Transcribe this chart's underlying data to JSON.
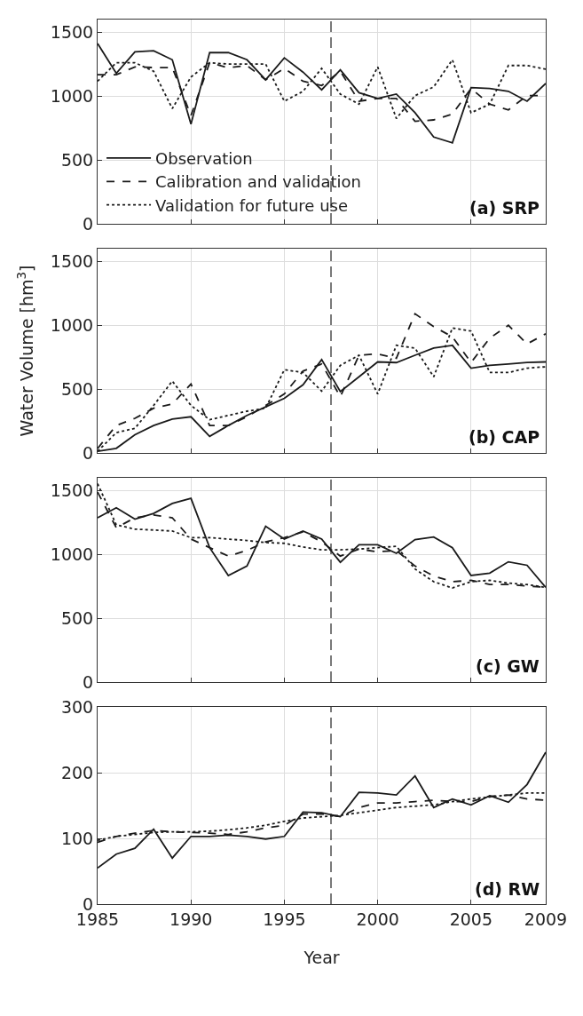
{
  "chart_data": [
    {
      "type": "line",
      "annotations": [
        "(a) SRP"
      ],
      "x": [
        1985,
        1986,
        1987,
        1988,
        1989,
        1990,
        1991,
        1992,
        1993,
        1994,
        1995,
        1996,
        1997,
        1998,
        1999,
        2000,
        2001,
        2002,
        2003,
        2004,
        2005,
        2006,
        2007,
        2008,
        2009
      ],
      "xlim": [
        1985,
        2009
      ],
      "xticks": [
        1985,
        1990,
        1995,
        2000,
        2005,
        2009
      ],
      "ylim": [
        0,
        1600
      ],
      "yticks": [
        0,
        500,
        1000,
        1500
      ],
      "grid": true,
      "legend": "bottom left",
      "tick_labels": "y",
      "ref_lines": [
        {
          "axis": "x",
          "value": 1997.5,
          "color": "#222222",
          "line_style": "dashed"
        }
      ],
      "series": [
        {
          "name": "Observation",
          "color": "#1a1a1a",
          "line_style": "solid",
          "values": [
            1412,
            1179,
            1347,
            1356,
            1285,
            780,
            1341,
            1341,
            1285,
            1128,
            1300,
            1188,
            1049,
            1206,
            1027,
            982,
            1016,
            870,
            680,
            634,
            1067,
            1060,
            1038,
            960,
            1099
          ]
        },
        {
          "name": "Calibration and validation",
          "color": "#1a1a1a",
          "line_style": "dashed",
          "values": [
            1168,
            1168,
            1229,
            1224,
            1224,
            848,
            1262,
            1222,
            1240,
            1128,
            1217,
            1117,
            1083,
            1195,
            960,
            982,
            982,
            803,
            814,
            859,
            1060,
            937,
            892,
            1004,
            1004
          ]
        },
        {
          "name": "Validation for future use",
          "color": "#1a1a1a",
          "line_style": "dotted",
          "values": [
            1117,
            1262,
            1262,
            1195,
            903,
            1150,
            1262,
            1251,
            1251,
            1251,
            960,
            1038,
            1217,
            1016,
            937,
            1229,
            825,
            1004,
            1072,
            1285,
            870,
            937,
            1240,
            1240,
            1211
          ]
        }
      ]
    },
    {
      "type": "line",
      "annotations": [
        "(b) CAP"
      ],
      "ylabel": "Water Volume [hm$^{3}$]",
      "x": [
        1985,
        1986,
        1987,
        1988,
        1989,
        1990,
        1991,
        1992,
        1993,
        1994,
        1995,
        1996,
        1997,
        1998,
        1999,
        2000,
        2001,
        2002,
        2003,
        2004,
        2005,
        2006,
        2007,
        2008,
        2009
      ],
      "xlim": [
        1985,
        2009
      ],
      "xticks": [
        1985,
        1990,
        1995,
        2000,
        2005,
        2009
      ],
      "ylim": [
        0,
        1600
      ],
      "yticks": [
        0,
        500,
        1000,
        1500
      ],
      "grid": true,
      "tick_labels": "y",
      "ref_lines": [
        {
          "axis": "x",
          "value": 1997.5,
          "color": "#222222",
          "line_style": "dashed"
        }
      ],
      "series": [
        {
          "color": "#1a1a1a",
          "line_style": "solid",
          "values": [
            13,
            36,
            143,
            215,
            265,
            283,
            130,
            215,
            294,
            361,
            428,
            534,
            731,
            480,
            596,
            713,
            708,
            765,
            821,
            843,
            664,
            686,
            697,
            708,
            713
          ]
        },
        {
          "color": "#1a1a1a",
          "line_style": "dashed",
          "values": [
            36,
            215,
            271,
            350,
            383,
            540,
            215,
            215,
            283,
            372,
            462,
            641,
            697,
            440,
            765,
            776,
            742,
            1090,
            989,
            910,
            708,
            899,
            1000,
            854,
            933
          ]
        },
        {
          "color": "#1a1a1a",
          "line_style": "dotted",
          "values": [
            13,
            159,
            193,
            372,
            563,
            372,
            260,
            294,
            327,
            350,
            652,
            630,
            484,
            686,
            765,
            462,
            843,
            821,
            596,
            978,
            955,
            630,
            630,
            664,
            675
          ]
        }
      ]
    },
    {
      "type": "line",
      "annotations": [
        "(c) GW"
      ],
      "x": [
        1985,
        1986,
        1987,
        1988,
        1989,
        1990,
        1991,
        1992,
        1993,
        1994,
        1995,
        1996,
        1997,
        1998,
        1999,
        2000,
        2001,
        2002,
        2003,
        2004,
        2005,
        2006,
        2007,
        2008,
        2009
      ],
      "xlim": [
        1985,
        2009
      ],
      "xticks": [
        1985,
        1990,
        1995,
        2000,
        2005,
        2009
      ],
      "ylim": [
        0,
        1600
      ],
      "yticks": [
        0,
        500,
        1000,
        1500
      ],
      "grid": true,
      "tick_labels": "y",
      "ref_lines": [
        {
          "axis": "x",
          "value": 1997.5,
          "color": "#222222",
          "line_style": "dashed"
        }
      ],
      "series": [
        {
          "color": "#1a1a1a",
          "line_style": "solid",
          "values": [
            1287,
            1365,
            1276,
            1321,
            1399,
            1439,
            1053,
            835,
            909,
            1220,
            1120,
            1183,
            1120,
            938,
            1076,
            1076,
            1009,
            1116,
            1136,
            1053,
            835,
            853,
            942,
            915,
            742
          ]
        },
        {
          "color": "#1a1a1a",
          "line_style": "dashed",
          "values": [
            1488,
            1209,
            1287,
            1309,
            1287,
            1120,
            1053,
            987,
            1031,
            1098,
            1131,
            1176,
            1098,
            987,
            1042,
            1020,
            1031,
            909,
            831,
            786,
            797,
            764,
            764,
            753,
            742
          ]
        },
        {
          "color": "#1a1a1a",
          "line_style": "dotted",
          "values": [
            1554,
            1232,
            1198,
            1191,
            1183,
            1131,
            1131,
            1120,
            1109,
            1093,
            1087,
            1058,
            1036,
            1036,
            1042,
            1053,
            1064,
            886,
            786,
            737,
            786,
            797,
            775,
            764,
            742
          ]
        }
      ]
    },
    {
      "type": "line",
      "annotations": [
        "(d) RW"
      ],
      "xlabel": "Year",
      "x": [
        1985,
        1986,
        1987,
        1988,
        1989,
        1990,
        1991,
        1992,
        1993,
        1994,
        1995,
        1996,
        1997,
        1998,
        1999,
        2000,
        2001,
        2002,
        2003,
        2004,
        2005,
        2006,
        2007,
        2008,
        2009
      ],
      "xlim": [
        1985,
        2009
      ],
      "xticks": [
        1985,
        1990,
        1995,
        2000,
        2005,
        2009
      ],
      "ylim": [
        0,
        300
      ],
      "yticks": [
        0,
        100,
        200,
        300
      ],
      "grid": true,
      "ref_lines": [
        {
          "axis": "x",
          "value": 1997.5,
          "color": "#222222",
          "line_style": "dashed"
        }
      ],
      "series": [
        {
          "color": "#1a1a1a",
          "line_style": "solid",
          "values": [
            55,
            76,
            85,
            114,
            70,
            103,
            103,
            105,
            103,
            99,
            103,
            140,
            139,
            133,
            170,
            169,
            166,
            195,
            147,
            160,
            151,
            165,
            155,
            182,
            231
          ]
        },
        {
          "color": "#1a1a1a",
          "line_style": "dashed",
          "values": [
            94,
            103,
            108,
            112,
            110,
            109,
            108,
            106,
            110,
            116,
            120,
            137,
            137,
            133,
            147,
            154,
            154,
            156,
            158,
            156,
            156,
            164,
            166,
            160,
            158
          ]
        },
        {
          "color": "#1a1a1a",
          "line_style": "dotted",
          "values": [
            97,
            103,
            106,
            109,
            110,
            110,
            111,
            113,
            116,
            120,
            126,
            131,
            133,
            135,
            139,
            143,
            147,
            149,
            151,
            156,
            160,
            163,
            166,
            169,
            169
          ]
        }
      ]
    }
  ]
}
